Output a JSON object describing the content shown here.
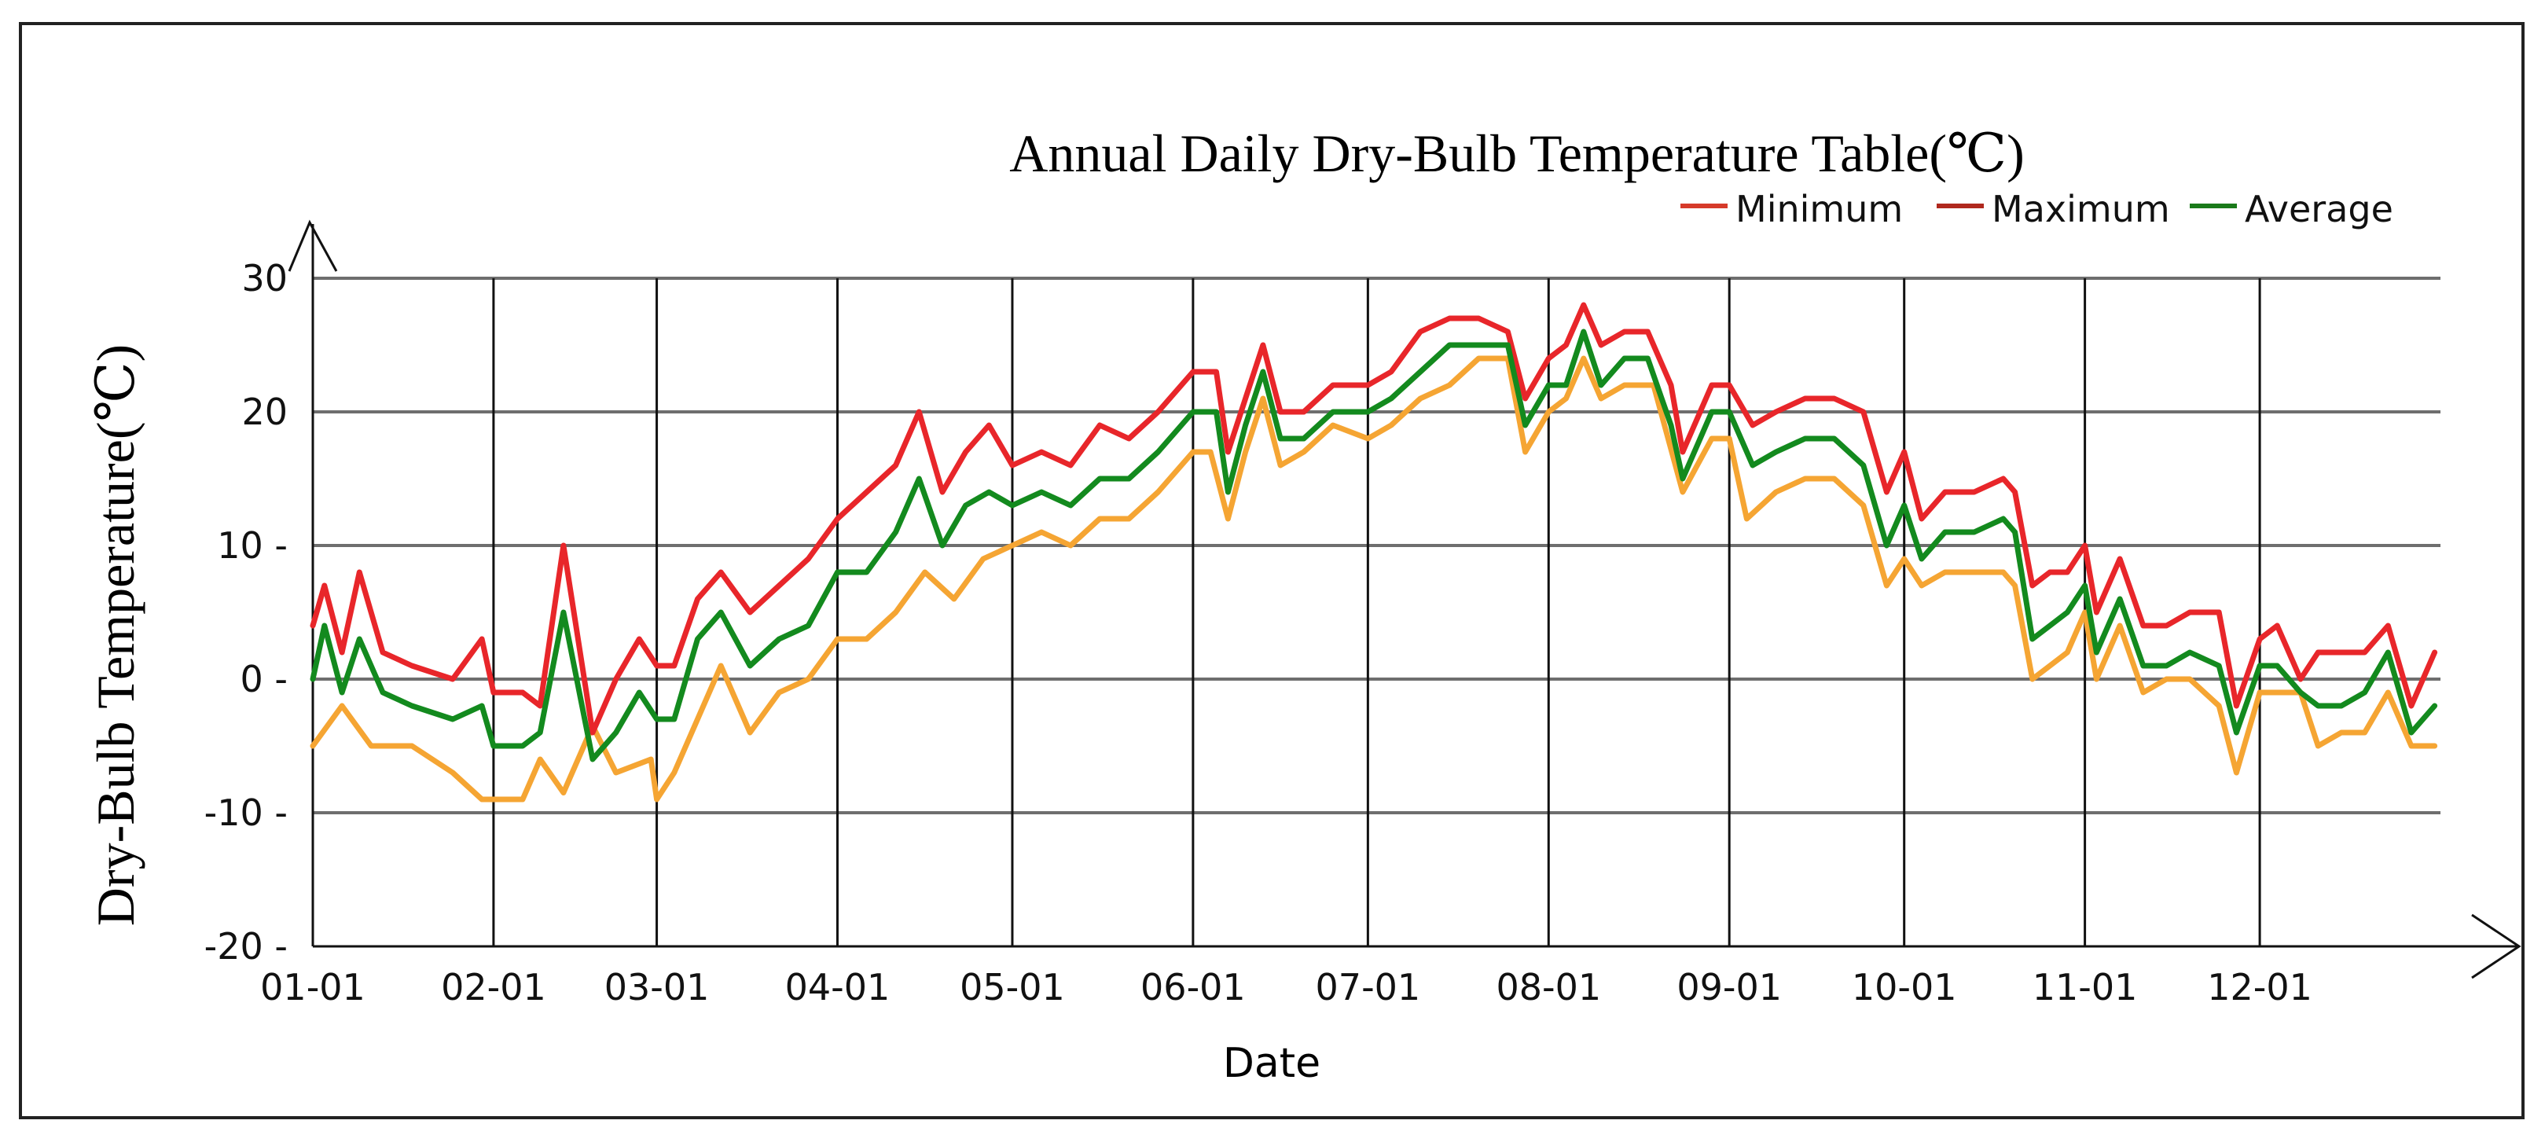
{
  "chart_data": {
    "type": "line",
    "title": "Annual Daily Dry-Bulb Temperature Table(℃)",
    "ylabel": "Dry-Bulb Temperature(℃)",
    "xlabel": "Date",
    "ylim": [
      -20,
      30
    ],
    "yticks": [
      30,
      20,
      10,
      0,
      -10,
      -20
    ],
    "yticklabels": [
      "30",
      "20",
      "10 -",
      "0 -",
      "-10 -",
      "-20 -"
    ],
    "xticklabels": [
      "01-01",
      "02-01",
      "03-01",
      "04-01",
      "05-01",
      "06-01",
      "07-01",
      "08-01",
      "09-01",
      "10-01",
      "11-01",
      "12-01"
    ],
    "xtick_days": [
      0,
      31,
      59,
      90,
      120,
      151,
      181,
      212,
      243,
      273,
      304,
      334
    ],
    "days_in_year": 365,
    "grid": true,
    "legend_position": "top-right",
    "legend_marker": "—",
    "colors": {
      "minimum": "#f5a533",
      "maximum": "#e8262a",
      "average": "#138a1e",
      "legend_minimum": "#d63a2a",
      "legend_maximum": "#b0281e",
      "legend_average": "#1a7a1a",
      "grid": "#000000"
    },
    "series": [
      {
        "name": "Minimum",
        "values": [
          [
            0,
            -5
          ],
          [
            5,
            -2
          ],
          [
            10,
            -5
          ],
          [
            17,
            -5
          ],
          [
            24,
            -7
          ],
          [
            29,
            -9
          ],
          [
            31,
            -9
          ],
          [
            36,
            -9
          ],
          [
            39,
            -6
          ],
          [
            43,
            -8.5
          ],
          [
            48,
            -3.5
          ],
          [
            52,
            -7
          ],
          [
            58,
            -6
          ],
          [
            59,
            -9
          ],
          [
            62,
            -7
          ],
          [
            66,
            -3
          ],
          [
            70,
            1
          ],
          [
            75,
            -4
          ],
          [
            80,
            -1
          ],
          [
            85,
            0
          ],
          [
            90,
            3
          ],
          [
            95,
            3
          ],
          [
            100,
            5
          ],
          [
            105,
            8
          ],
          [
            110,
            6
          ],
          [
            115,
            9
          ],
          [
            120,
            10
          ],
          [
            125,
            11
          ],
          [
            130,
            10
          ],
          [
            135,
            12
          ],
          [
            140,
            12
          ],
          [
            145,
            14
          ],
          [
            151,
            17
          ],
          [
            154,
            17
          ],
          [
            157,
            12
          ],
          [
            160,
            17
          ],
          [
            163,
            21
          ],
          [
            166,
            16
          ],
          [
            170,
            17
          ],
          [
            175,
            19
          ],
          [
            181,
            18
          ],
          [
            185,
            19
          ],
          [
            190,
            21
          ],
          [
            195,
            22
          ],
          [
            200,
            24
          ],
          [
            205,
            24
          ],
          [
            208,
            17
          ],
          [
            212,
            20
          ],
          [
            215,
            21
          ],
          [
            218,
            24
          ],
          [
            221,
            21
          ],
          [
            225,
            22
          ],
          [
            230,
            22
          ],
          [
            235,
            14
          ],
          [
            240,
            18
          ],
          [
            243,
            18
          ],
          [
            246,
            12
          ],
          [
            251,
            14
          ],
          [
            256,
            15
          ],
          [
            261,
            15
          ],
          [
            266,
            13
          ],
          [
            270,
            7
          ],
          [
            273,
            9
          ],
          [
            276,
            7
          ],
          [
            280,
            8
          ],
          [
            285,
            8
          ],
          [
            290,
            8
          ],
          [
            292,
            7
          ],
          [
            295,
            0
          ],
          [
            298,
            1
          ],
          [
            301,
            2
          ],
          [
            304,
            5
          ],
          [
            306,
            0
          ],
          [
            310,
            4
          ],
          [
            314,
            -1
          ],
          [
            318,
            0
          ],
          [
            322,
            0
          ],
          [
            327,
            -2
          ],
          [
            330,
            -7
          ],
          [
            334,
            -1
          ],
          [
            337,
            -1
          ],
          [
            341,
            -1
          ],
          [
            344,
            -5
          ],
          [
            348,
            -4
          ],
          [
            352,
            -4
          ],
          [
            356,
            -1
          ],
          [
            360,
            -5
          ],
          [
            364,
            -5
          ]
        ]
      },
      {
        "name": "Maximum",
        "values": [
          [
            0,
            4
          ],
          [
            2,
            7
          ],
          [
            5,
            2
          ],
          [
            8,
            8
          ],
          [
            12,
            2
          ],
          [
            17,
            1
          ],
          [
            24,
            0
          ],
          [
            29,
            3
          ],
          [
            31,
            -1
          ],
          [
            36,
            -1
          ],
          [
            39,
            -2
          ],
          [
            43,
            10
          ],
          [
            48,
            -4
          ],
          [
            52,
            0
          ],
          [
            56,
            3
          ],
          [
            59,
            1
          ],
          [
            62,
            1
          ],
          [
            66,
            6
          ],
          [
            70,
            8
          ],
          [
            75,
            5
          ],
          [
            80,
            7
          ],
          [
            85,
            9
          ],
          [
            90,
            12
          ],
          [
            95,
            14
          ],
          [
            100,
            16
          ],
          [
            104,
            20
          ],
          [
            108,
            14
          ],
          [
            112,
            17
          ],
          [
            116,
            19
          ],
          [
            120,
            16
          ],
          [
            125,
            17
          ],
          [
            130,
            16
          ],
          [
            135,
            19
          ],
          [
            140,
            18
          ],
          [
            145,
            20
          ],
          [
            151,
            23
          ],
          [
            155,
            23
          ],
          [
            157,
            17
          ],
          [
            160,
            21
          ],
          [
            163,
            25
          ],
          [
            166,
            20
          ],
          [
            170,
            20
          ],
          [
            175,
            22
          ],
          [
            181,
            22
          ],
          [
            185,
            23
          ],
          [
            190,
            26
          ],
          [
            195,
            27
          ],
          [
            200,
            27
          ],
          [
            205,
            26
          ],
          [
            208,
            21
          ],
          [
            212,
            24
          ],
          [
            215,
            25
          ],
          [
            218,
            28
          ],
          [
            221,
            25
          ],
          [
            225,
            26
          ],
          [
            229,
            26
          ],
          [
            233,
            22
          ],
          [
            235,
            17
          ],
          [
            240,
            22
          ],
          [
            243,
            22
          ],
          [
            247,
            19
          ],
          [
            251,
            20
          ],
          [
            256,
            21
          ],
          [
            261,
            21
          ],
          [
            266,
            20
          ],
          [
            270,
            14
          ],
          [
            273,
            17
          ],
          [
            276,
            12
          ],
          [
            280,
            14
          ],
          [
            285,
            14
          ],
          [
            290,
            15
          ],
          [
            292,
            14
          ],
          [
            295,
            7
          ],
          [
            298,
            8
          ],
          [
            301,
            8
          ],
          [
            304,
            10
          ],
          [
            306,
            5
          ],
          [
            310,
            9
          ],
          [
            314,
            4
          ],
          [
            318,
            4
          ],
          [
            322,
            5
          ],
          [
            327,
            5
          ],
          [
            330,
            -2
          ],
          [
            334,
            3
          ],
          [
            337,
            4
          ],
          [
            341,
            0
          ],
          [
            344,
            2
          ],
          [
            348,
            2
          ],
          [
            352,
            2
          ],
          [
            356,
            4
          ],
          [
            360,
            -2
          ],
          [
            364,
            2
          ]
        ]
      },
      {
        "name": "Average",
        "values": [
          [
            0,
            0
          ],
          [
            2,
            4
          ],
          [
            5,
            -1
          ],
          [
            8,
            3
          ],
          [
            12,
            -1
          ],
          [
            17,
            -2
          ],
          [
            24,
            -3
          ],
          [
            29,
            -2
          ],
          [
            31,
            -5
          ],
          [
            36,
            -5
          ],
          [
            39,
            -4
          ],
          [
            43,
            5
          ],
          [
            48,
            -6
          ],
          [
            52,
            -4
          ],
          [
            56,
            -1
          ],
          [
            59,
            -3
          ],
          [
            62,
            -3
          ],
          [
            66,
            3
          ],
          [
            70,
            5
          ],
          [
            75,
            1
          ],
          [
            80,
            3
          ],
          [
            85,
            4
          ],
          [
            90,
            8
          ],
          [
            95,
            8
          ],
          [
            100,
            11
          ],
          [
            104,
            15
          ],
          [
            108,
            10
          ],
          [
            112,
            13
          ],
          [
            116,
            14
          ],
          [
            120,
            13
          ],
          [
            125,
            14
          ],
          [
            130,
            13
          ],
          [
            135,
            15
          ],
          [
            140,
            15
          ],
          [
            145,
            17
          ],
          [
            151,
            20
          ],
          [
            155,
            20
          ],
          [
            157,
            14
          ],
          [
            160,
            19
          ],
          [
            163,
            23
          ],
          [
            166,
            18
          ],
          [
            170,
            18
          ],
          [
            175,
            20
          ],
          [
            181,
            20
          ],
          [
            185,
            21
          ],
          [
            190,
            23
          ],
          [
            195,
            25
          ],
          [
            200,
            25
          ],
          [
            205,
            25
          ],
          [
            208,
            19
          ],
          [
            212,
            22
          ],
          [
            215,
            22
          ],
          [
            218,
            26
          ],
          [
            221,
            22
          ],
          [
            225,
            24
          ],
          [
            229,
            24
          ],
          [
            233,
            19
          ],
          [
            235,
            15
          ],
          [
            240,
            20
          ],
          [
            243,
            20
          ],
          [
            247,
            16
          ],
          [
            251,
            17
          ],
          [
            256,
            18
          ],
          [
            261,
            18
          ],
          [
            266,
            16
          ],
          [
            270,
            10
          ],
          [
            273,
            13
          ],
          [
            276,
            9
          ],
          [
            280,
            11
          ],
          [
            285,
            11
          ],
          [
            290,
            12
          ],
          [
            292,
            11
          ],
          [
            295,
            3
          ],
          [
            298,
            4
          ],
          [
            301,
            5
          ],
          [
            304,
            7
          ],
          [
            306,
            2
          ],
          [
            310,
            6
          ],
          [
            314,
            1
          ],
          [
            318,
            1
          ],
          [
            322,
            2
          ],
          [
            327,
            1
          ],
          [
            330,
            -4
          ],
          [
            334,
            1
          ],
          [
            337,
            1
          ],
          [
            341,
            -1
          ],
          [
            344,
            -2
          ],
          [
            348,
            -2
          ],
          [
            352,
            -1
          ],
          [
            356,
            2
          ],
          [
            360,
            -4
          ],
          [
            364,
            -2
          ]
        ]
      }
    ]
  }
}
